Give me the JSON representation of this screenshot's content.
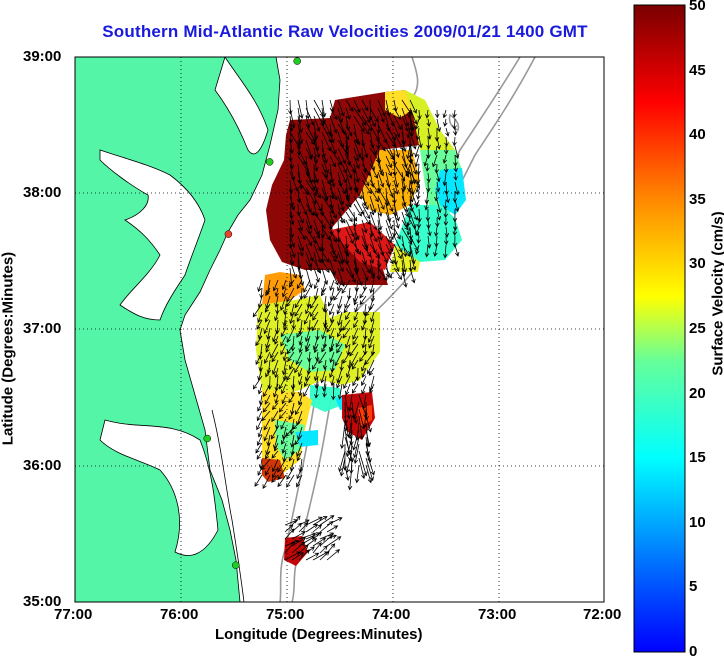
{
  "title": "Southern Mid-Atlantic Raw Velocities 2009/01/21 1400 GMT",
  "xlabel": "Longitude (Degrees:Minutes)",
  "ylabel": "Latitude (Degrees:Minutes)",
  "colorbar": {
    "label": "Surface Velocity (cm/s)",
    "ticks": [
      "0",
      "5",
      "10",
      "15",
      "20",
      "25",
      "30",
      "35",
      "40",
      "45",
      "50"
    ],
    "range": [
      0,
      50
    ],
    "colormap": "jet"
  },
  "map": {
    "lon_ticks": [
      "77:00",
      "76:00",
      "75:00",
      "74:00",
      "73:00",
      "72:00"
    ],
    "lat_ticks": [
      "39:00",
      "38:00",
      "37:00",
      "36:00",
      "35:00"
    ],
    "lon_range": [
      -77,
      -72
    ],
    "lat_range": [
      35,
      39
    ],
    "land_color": "#55f5a8",
    "grid": "dotted"
  },
  "stations": [
    {
      "lon": -74.9,
      "lat": 38.97,
      "color": "#22cc22"
    },
    {
      "lon": -75.16,
      "lat": 38.23,
      "color": "#22cc22"
    },
    {
      "lon": -75.55,
      "lat": 37.7,
      "color": "#e8432c"
    },
    {
      "lon": -75.75,
      "lat": 36.2,
      "color": "#22cc22"
    },
    {
      "lon": -75.48,
      "lat": 35.27,
      "color": "#22cc22"
    }
  ]
}
